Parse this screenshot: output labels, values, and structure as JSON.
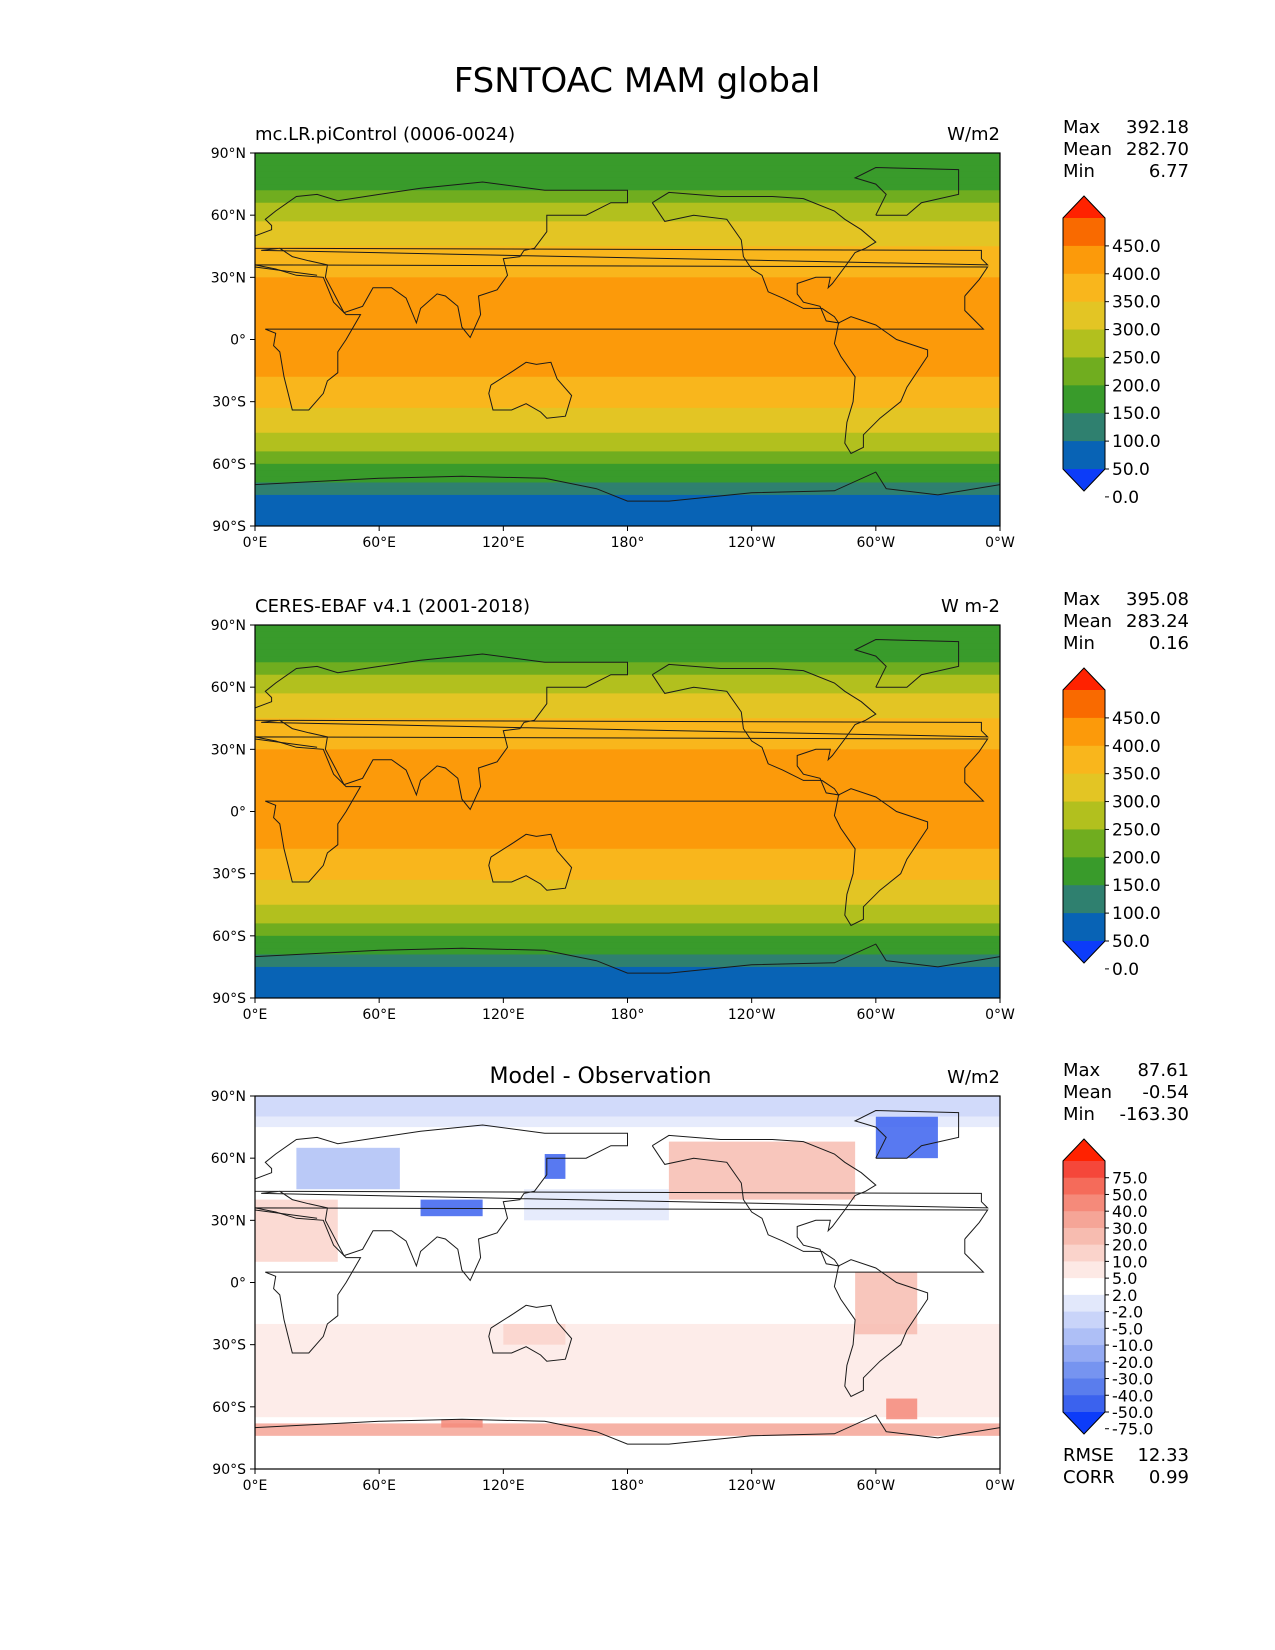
{
  "figure": {
    "title": "FSNTOAC MAM global"
  },
  "axes": {
    "lat_ticks": [
      "90°N",
      "60°N",
      "30°N",
      "0°",
      "30°S",
      "60°S",
      "90°S"
    ],
    "lon_ticks": [
      "0°E",
      "60°E",
      "120°E",
      "180°",
      "120°W",
      "60°W",
      "0°W"
    ]
  },
  "chart_data": [
    {
      "type": "heatmap",
      "title": "mc.LR.piControl (0006-0024)",
      "units": "W/m2",
      "stats": {
        "max_label": "Max",
        "max": "392.18",
        "mean_label": "Mean",
        "mean": "282.70",
        "min_label": "Min",
        "min": "6.77"
      },
      "colorbar": {
        "ticks": [
          "450.0",
          "400.0",
          "350.0",
          "300.0",
          "250.0",
          "200.0",
          "150.0",
          "100.0",
          "50.0",
          "0.0"
        ],
        "colors": [
          "#ff2200",
          "#f96a00",
          "#fc9a0a",
          "#f9b61c",
          "#e3c524",
          "#b2c01e",
          "#70ad1f",
          "#399b2b",
          "#2f806f",
          "#0863b5",
          "#0c3cf9"
        ]
      },
      "zonal_profile": {
        "lat": [
          90,
          75,
          60,
          45,
          30,
          15,
          0,
          -15,
          -30,
          -45,
          -60,
          -75,
          -90
        ],
        "value": [
          100,
          140,
          230,
          300,
          350,
          380,
          380,
          360,
          310,
          250,
          160,
          40,
          20
        ]
      },
      "xlim": [
        0,
        360
      ],
      "ylim": [
        -90,
        90
      ]
    },
    {
      "type": "heatmap",
      "title": "CERES-EBAF v4.1 (2001-2018)",
      "units": "W m-2",
      "stats": {
        "max_label": "Max",
        "max": "395.08",
        "mean_label": "Mean",
        "mean": "283.24",
        "min_label": "Min",
        "min": "0.16"
      },
      "colorbar": {
        "ticks": [
          "450.0",
          "400.0",
          "350.0",
          "300.0",
          "250.0",
          "200.0",
          "150.0",
          "100.0",
          "50.0",
          "0.0"
        ],
        "colors": [
          "#ff2200",
          "#f96a00",
          "#fc9a0a",
          "#f9b61c",
          "#e3c524",
          "#b2c01e",
          "#70ad1f",
          "#399b2b",
          "#2f806f",
          "#0863b5",
          "#0c3cf9"
        ]
      },
      "zonal_profile": {
        "lat": [
          90,
          75,
          60,
          45,
          30,
          15,
          0,
          -15,
          -30,
          -45,
          -60,
          -75,
          -90
        ],
        "value": [
          100,
          140,
          230,
          300,
          350,
          380,
          380,
          360,
          310,
          250,
          160,
          40,
          20
        ]
      },
      "xlim": [
        0,
        360
      ],
      "ylim": [
        -90,
        90
      ]
    },
    {
      "type": "heatmap",
      "title": "Model - Observation",
      "units": "W/m2",
      "stats": {
        "max_label": "Max",
        "max": "87.61",
        "mean_label": "Mean",
        "mean": "-0.54",
        "min_label": "Min",
        "min": "-163.30"
      },
      "extra_stats": {
        "rmse_label": "RMSE",
        "rmse": "12.33",
        "corr_label": "CORR",
        "corr": "0.99"
      },
      "colorbar": {
        "ticks": [
          "75.0",
          "50.0",
          "40.0",
          "30.0",
          "20.0",
          "10.0",
          "5.0",
          "2.0",
          "-2.0",
          "-5.0",
          "-10.0",
          "-20.0",
          "-30.0",
          "-40.0",
          "-50.0",
          "-75.0"
        ],
        "colors": [
          "#ff2200",
          "#f5473a",
          "#f56b5a",
          "#f58a7a",
          "#f5a597",
          "#f7bcb0",
          "#fad3cb",
          "#fde9e5",
          "#ffffff",
          "#e2e8fb",
          "#c9d4f9",
          "#aebff6",
          "#94aaf3",
          "#7694f0",
          "#5a7ded",
          "#3b62ee",
          "#0c3cf9"
        ]
      },
      "xlim": [
        0,
        360
      ],
      "ylim": [
        -90,
        90
      ]
    }
  ]
}
